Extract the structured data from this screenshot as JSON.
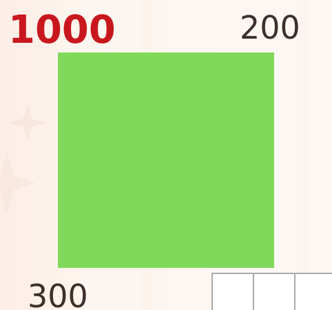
{
  "score": 1000,
  "top_label": 200,
  "bottom_label": 300
}
